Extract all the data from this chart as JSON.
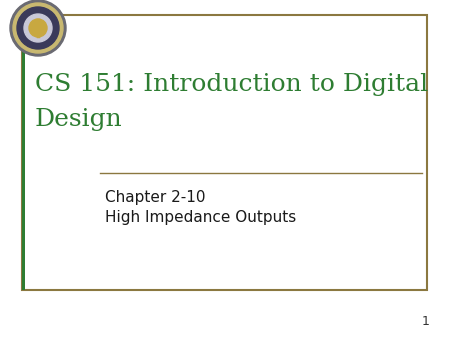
{
  "background_color": "#ffffff",
  "title_line1": "CS 151: Introduction to Digital",
  "title_line2": "Design",
  "title_color": "#2E7D32",
  "subtitle_line1": "Chapter 2-10",
  "subtitle_line2": "High Impedance Outputs",
  "subtitle_color": "#1a1a1a",
  "page_number": "1",
  "page_number_color": "#333333",
  "border_outer_color": "#8B7840",
  "border_inner_color": "#2E7D32",
  "separator_color": "#8B7840",
  "title_fontsize": 18,
  "subtitle_fontsize": 11,
  "page_num_fontsize": 9
}
